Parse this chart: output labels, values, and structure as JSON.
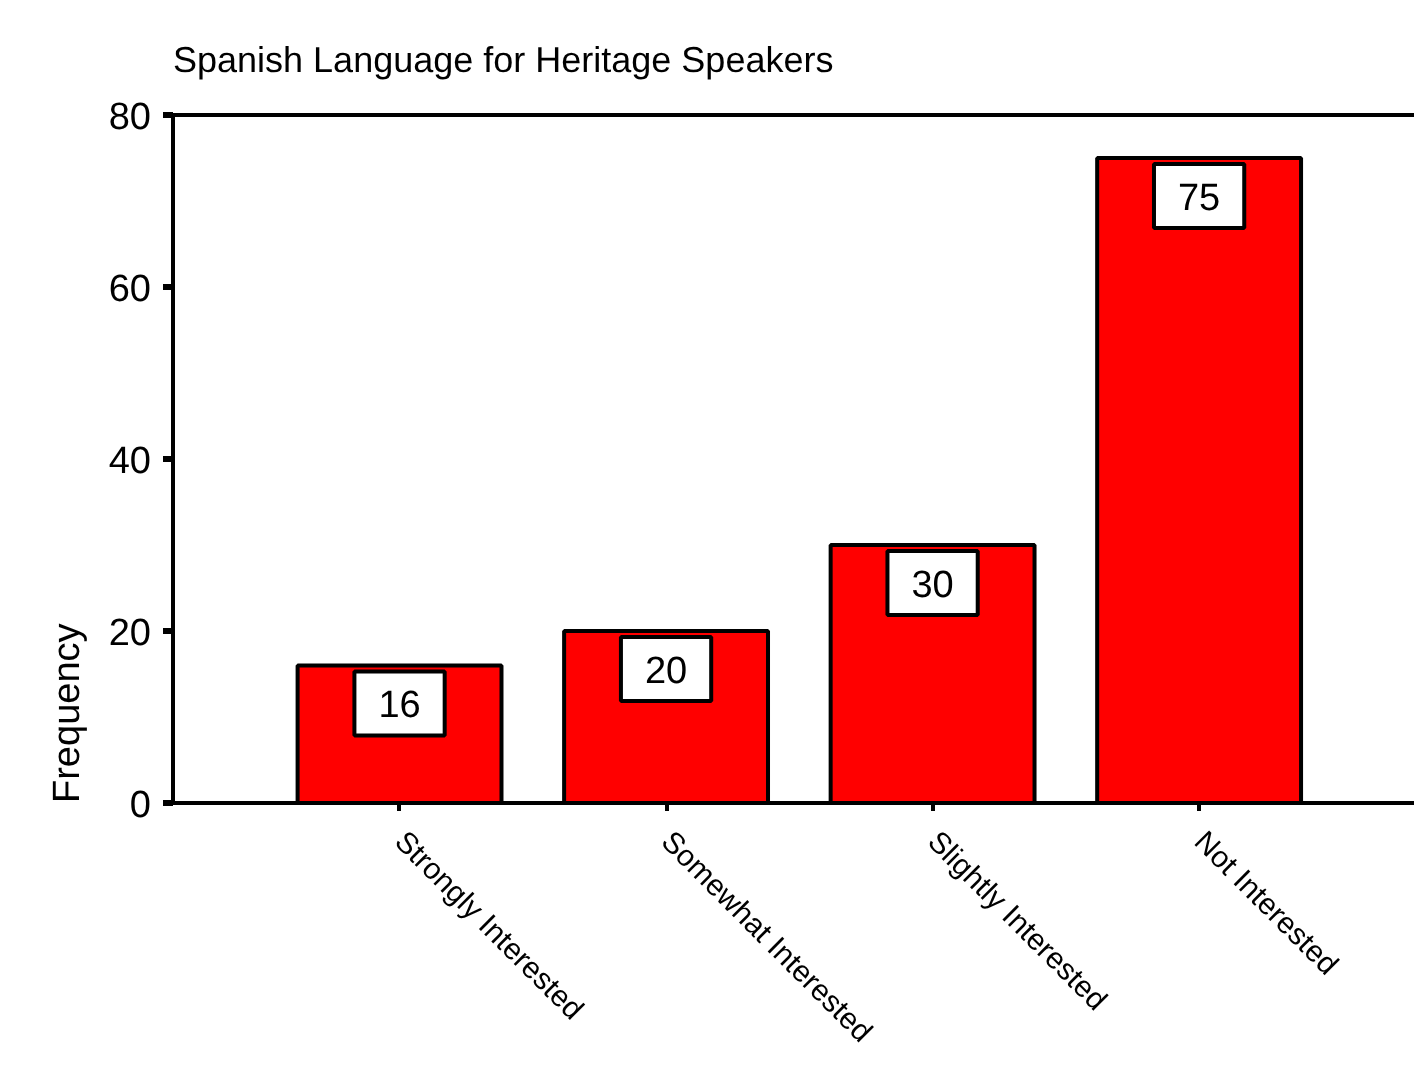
{
  "chart_data": {
    "type": "bar",
    "title": "Spanish Language for Heritage Speakers",
    "ylabel": "Frequency",
    "categories": [
      "Strongly Interested",
      "Somewhat Interested",
      "Slightly Interested",
      "Not Interested"
    ],
    "values": [
      16,
      20,
      30,
      75
    ],
    "color": "#ff0000",
    "ylim": [
      0,
      80
    ],
    "yticks": [
      0,
      20,
      40,
      60,
      80
    ],
    "data_labels": true
  }
}
